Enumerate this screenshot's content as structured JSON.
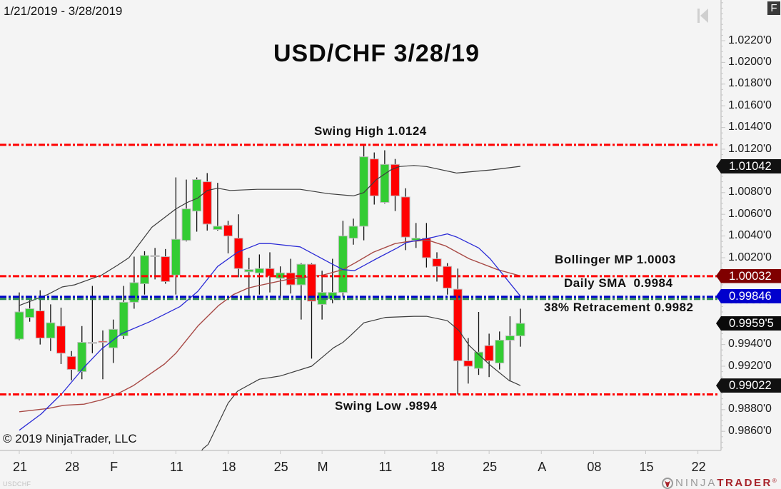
{
  "window": {
    "f_button": "F",
    "scroll_to_end_icon": "scroll-to-end-icon"
  },
  "footer": {
    "copyright": "© 2019 NinjaTrader, LLC",
    "instrument_label": "USDCHF",
    "logo_icon": "ninjatrader-logo-icon",
    "logo_ninja": "NINJA",
    "logo_trader": "TRADER",
    "logo_reg": "®"
  },
  "chart_data": {
    "type": "candlestick",
    "title": "USD/CHF 3/28/19",
    "date_range": "1/21/2019 - 3/28/2019",
    "instrument": "USDCHF",
    "xlabel": "",
    "ylabel": "",
    "grid": false,
    "ylim": [
      0.98404,
      1.02575
    ],
    "colors": {
      "up": "#33cc33",
      "down": "#ff0000",
      "outline": "#bdbdbd",
      "wick": "#111111",
      "axis": "#c8c8c8"
    },
    "y_ticks": [
      "1.0220'0",
      "1.0200'0",
      "1.0180'0",
      "1.0160'0",
      "1.0140'0",
      "1.0120'0",
      "1.0100'0",
      "1.0080'0",
      "1.0060'0",
      "1.0040'0",
      "1.0020'0",
      "1.0000'0",
      "0.9980'0",
      "0.9960'0",
      "0.9940'0",
      "0.9920'0",
      "0.9900'0",
      "0.9880'0",
      "0.9860'0"
    ],
    "x_ticks": [
      {
        "label": "21",
        "bar": 0
      },
      {
        "label": "28",
        "bar": 5
      },
      {
        "label": "F",
        "bar": 9
      },
      {
        "label": "11",
        "bar": 15
      },
      {
        "label": "18",
        "bar": 20
      },
      {
        "label": "25",
        "bar": 25
      },
      {
        "label": "M",
        "bar": 29
      },
      {
        "label": "11",
        "bar": 35
      },
      {
        "label": "18",
        "bar": 40
      },
      {
        "label": "25",
        "bar": 45
      },
      {
        "label": "A",
        "bar": 50
      },
      {
        "label": "08",
        "bar": 55
      },
      {
        "label": "15",
        "bar": 60
      },
      {
        "label": "22",
        "bar": 65
      }
    ],
    "candles": [
      {
        "d": "2019-01-21",
        "o": 0.9945,
        "h": 0.9988,
        "l": 0.9944,
        "c": 0.997
      },
      {
        "d": "2019-01-22",
        "o": 0.9965,
        "h": 0.9981,
        "l": 0.9961,
        "c": 0.9973
      },
      {
        "d": "2019-01-23",
        "o": 0.9971,
        "h": 0.999,
        "l": 0.994,
        "c": 0.9946
      },
      {
        "d": "2019-01-24",
        "o": 0.9946,
        "h": 0.9977,
        "l": 0.9934,
        "c": 0.996
      },
      {
        "d": "2019-01-25",
        "o": 0.9957,
        "h": 0.9974,
        "l": 0.9922,
        "c": 0.9932
      },
      {
        "d": "2019-01-28",
        "o": 0.9929,
        "h": 0.9934,
        "l": 0.9907,
        "c": 0.9917
      },
      {
        "d": "2019-01-29",
        "o": 0.9915,
        "h": 0.9957,
        "l": 0.9908,
        "c": 0.9942
      },
      {
        "d": "2019-01-30",
        "o": 0.9942,
        "h": 0.9994,
        "l": 0.9932,
        "c": 0.9942
      },
      {
        "d": "2019-01-31",
        "o": 0.9943,
        "h": 0.9953,
        "l": 0.9908,
        "c": 0.9942
      },
      {
        "d": "2019-02-01",
        "o": 0.9937,
        "h": 0.9963,
        "l": 0.9923,
        "c": 0.9954
      },
      {
        "d": "2019-02-04",
        "o": 0.9948,
        "h": 0.9994,
        "l": 0.9945,
        "c": 0.9979
      },
      {
        "d": "2019-02-05",
        "o": 0.9979,
        "h": 1.0021,
        "l": 0.9973,
        "c": 0.9997
      },
      {
        "d": "2019-02-06",
        "o": 0.9996,
        "h": 1.0026,
        "l": 0.9986,
        "c": 1.0022
      },
      {
        "d": "2019-02-07",
        "o": 1.0022,
        "h": 1.0029,
        "l": 1.0,
        "c": 1.0022
      },
      {
        "d": "2019-02-08",
        "o": 1.0021,
        "h": 1.0028,
        "l": 0.9996,
        "c": 0.9998
      },
      {
        "d": "2019-02-11",
        "o": 1.0004,
        "h": 1.0094,
        "l": 0.9986,
        "c": 1.0037
      },
      {
        "d": "2019-02-12",
        "o": 1.0036,
        "h": 1.0092,
        "l": 1.0035,
        "c": 1.0065
      },
      {
        "d": "2019-02-13",
        "o": 1.0063,
        "h": 1.0094,
        "l": 1.0044,
        "c": 1.0092
      },
      {
        "d": "2019-02-14",
        "o": 1.009,
        "h": 1.0098,
        "l": 1.0045,
        "c": 1.0051
      },
      {
        "d": "2019-02-15",
        "o": 1.0046,
        "h": 1.0089,
        "l": 1.0045,
        "c": 1.0049
      },
      {
        "d": "2019-02-18",
        "o": 1.005,
        "h": 1.0054,
        "l": 1.0024,
        "c": 1.004
      },
      {
        "d": "2019-02-19",
        "o": 1.0038,
        "h": 1.006,
        "l": 1.0002,
        "c": 1.001
      },
      {
        "d": "2019-02-20",
        "o": 1.0007,
        "h": 1.002,
        "l": 0.9982,
        "c": 1.0009
      },
      {
        "d": "2019-02-21",
        "o": 1.0006,
        "h": 1.0023,
        "l": 0.9986,
        "c": 1.001
      },
      {
        "d": "2019-02-22",
        "o": 1.001,
        "h": 1.0025,
        "l": 0.9988,
        "c": 1.0003
      },
      {
        "d": "2019-02-25",
        "o": 1.0001,
        "h": 1.0012,
        "l": 0.9983,
        "c": 1.0006
      },
      {
        "d": "2019-02-26",
        "o": 1.0006,
        "h": 1.0019,
        "l": 0.9987,
        "c": 0.9995
      },
      {
        "d": "2019-02-27",
        "o": 0.9995,
        "h": 1.0015,
        "l": 0.9963,
        "c": 1.0014
      },
      {
        "d": "2019-02-28",
        "o": 1.0014,
        "h": 1.0015,
        "l": 0.9927,
        "c": 0.998
      },
      {
        "d": "2019-03-01",
        "o": 0.9977,
        "h": 1.0008,
        "l": 0.9963,
        "c": 0.9988
      },
      {
        "d": "2019-03-04",
        "o": 0.9982,
        "h": 1.0019,
        "l": 0.9978,
        "c": 0.9988
      },
      {
        "d": "2019-03-05",
        "o": 0.9988,
        "h": 1.0054,
        "l": 0.9984,
        "c": 1.004
      },
      {
        "d": "2019-03-06",
        "o": 1.0038,
        "h": 1.0056,
        "l": 1.0032,
        "c": 1.0049
      },
      {
        "d": "2019-03-07",
        "o": 1.0049,
        "h": 1.0124,
        "l": 1.0036,
        "c": 1.0113
      },
      {
        "d": "2019-03-08",
        "o": 1.0111,
        "h": 1.0117,
        "l": 1.0069,
        "c": 1.0077
      },
      {
        "d": "2019-03-11",
        "o": 1.0071,
        "h": 1.0119,
        "l": 1.007,
        "c": 1.0106
      },
      {
        "d": "2019-03-12",
        "o": 1.0106,
        "h": 1.0111,
        "l": 1.0063,
        "c": 1.0077
      },
      {
        "d": "2019-03-13",
        "o": 1.0076,
        "h": 1.0084,
        "l": 1.0027,
        "c": 1.0039
      },
      {
        "d": "2019-03-14",
        "o": 1.0036,
        "h": 1.0052,
        "l": 1.0029,
        "c": 1.0038
      },
      {
        "d": "2019-03-15",
        "o": 1.0038,
        "h": 1.0052,
        "l": 1.0011,
        "c": 1.002
      },
      {
        "d": "2019-03-18",
        "o": 1.0019,
        "h": 1.0025,
        "l": 0.9998,
        "c": 1.0012
      },
      {
        "d": "2019-03-19",
        "o": 1.0012,
        "h": 1.0015,
        "l": 0.9986,
        "c": 0.9992
      },
      {
        "d": "2019-03-20",
        "o": 0.9991,
        "h": 1.001,
        "l": 0.9894,
        "c": 0.9925
      },
      {
        "d": "2019-03-21",
        "o": 0.9925,
        "h": 0.9946,
        "l": 0.9904,
        "c": 0.992
      },
      {
        "d": "2019-03-22",
        "o": 0.9918,
        "h": 0.997,
        "l": 0.9912,
        "c": 0.9933
      },
      {
        "d": "2019-03-25",
        "o": 0.9939,
        "h": 0.995,
        "l": 0.991,
        "c": 0.9925
      },
      {
        "d": "2019-03-26",
        "o": 0.9923,
        "h": 0.9952,
        "l": 0.9917,
        "c": 0.9944
      },
      {
        "d": "2019-03-27",
        "o": 0.9944,
        "h": 0.9966,
        "l": 0.9906,
        "c": 0.9948
      },
      {
        "d": "2019-03-28",
        "o": 0.9948,
        "h": 0.9973,
        "l": 0.9938,
        "c": 0.99595
      }
    ],
    "indicators": [
      {
        "name": "Bollinger upper band",
        "color": "#3c3c3c",
        "width": 1.2,
        "points": [
          [
            0,
            0.9976
          ],
          [
            2.7,
            0.9986
          ],
          [
            4.1,
            0.9993
          ],
          [
            5.3,
            0.9995
          ],
          [
            7.9,
            1.0004
          ],
          [
            9.4,
            1.0013
          ],
          [
            10.5,
            1.002
          ],
          [
            12.7,
            1.0048
          ],
          [
            15.0,
            1.0065
          ],
          [
            16.1,
            1.0071
          ],
          [
            17.1,
            1.0075
          ],
          [
            18.0,
            1.0082
          ],
          [
            19.0,
            1.0084
          ],
          [
            20.2,
            1.0082
          ],
          [
            22.8,
            1.0083
          ],
          [
            26.9,
            1.0083
          ],
          [
            29.6,
            1.0079
          ],
          [
            32.0,
            1.0077
          ],
          [
            33.0,
            1.008
          ],
          [
            34.2,
            1.0092
          ],
          [
            35.6,
            1.0101
          ],
          [
            36.4,
            1.0104
          ],
          [
            37.8,
            1.0105
          ],
          [
            39.0,
            1.0104
          ],
          [
            41.9,
            1.0098
          ],
          [
            45.3,
            1.0101
          ],
          [
            48.0,
            1.01042
          ]
        ]
      },
      {
        "name": "Bollinger lower band",
        "color": "#3c3c3c",
        "width": 1.2,
        "points": [
          [
            16.6,
            0.983
          ],
          [
            17.6,
            0.9844
          ],
          [
            18.1,
            0.9848
          ],
          [
            20.0,
            0.9886
          ],
          [
            20.9,
            0.9897
          ],
          [
            23.0,
            0.9908
          ],
          [
            25.0,
            0.9911
          ],
          [
            28.0,
            0.992
          ],
          [
            30.1,
            0.9937
          ],
          [
            31.0,
            0.9942
          ],
          [
            31.7,
            0.9948
          ],
          [
            33.0,
            0.996
          ],
          [
            35.1,
            0.9965
          ],
          [
            37.8,
            0.9966
          ],
          [
            39.0,
            0.9966
          ],
          [
            41.0,
            0.9962
          ],
          [
            42.1,
            0.9953
          ],
          [
            43.1,
            0.9939
          ],
          [
            45.1,
            0.9921
          ],
          [
            46.9,
            0.9907
          ],
          [
            48.0,
            0.99022
          ]
        ]
      },
      {
        "name": "Bollinger middle",
        "color": "#a84a46",
        "width": 1.4,
        "points": [
          [
            0,
            0.9878
          ],
          [
            2.7,
            0.9881
          ],
          [
            4.3,
            0.9884
          ],
          [
            6.2,
            0.9885
          ],
          [
            7.9,
            0.9889
          ],
          [
            9.3,
            0.9894
          ],
          [
            10.9,
            0.9902
          ],
          [
            13.9,
            0.9922
          ],
          [
            15.0,
            0.9932
          ],
          [
            17.1,
            0.9957
          ],
          [
            19.1,
            0.9976
          ],
          [
            20.5,
            0.9986
          ],
          [
            21.9,
            0.9992
          ],
          [
            22.8,
            0.9994
          ],
          [
            25.7,
            1.0
          ],
          [
            29.1,
            1.0004
          ],
          [
            31.0,
            1.0009
          ],
          [
            32.3,
            1.0016
          ],
          [
            33.9,
            1.0025
          ],
          [
            36.0,
            1.0033
          ],
          [
            37.3,
            1.0035
          ],
          [
            39.2,
            1.0036
          ],
          [
            40.8,
            1.0031
          ],
          [
            43.1,
            1.0019
          ],
          [
            45.8,
            1.0009
          ],
          [
            48.0,
            1.00032
          ]
        ]
      },
      {
        "name": "Daily SMA",
        "color": "#2b2bd6",
        "width": 1.3,
        "points": [
          [
            0,
            0.9861
          ],
          [
            2.1,
            0.9876
          ],
          [
            4.1,
            0.9895
          ],
          [
            6.2,
            0.9919
          ],
          [
            7.9,
            0.9936
          ],
          [
            9.8,
            0.995
          ],
          [
            12.5,
            0.9961
          ],
          [
            15.4,
            0.9975
          ],
          [
            17.1,
            0.9989
          ],
          [
            19.0,
            1.0012
          ],
          [
            20.9,
            1.0025
          ],
          [
            23.0,
            1.0033
          ],
          [
            24.0,
            1.0033
          ],
          [
            26.9,
            1.003
          ],
          [
            29.8,
            1.0015
          ],
          [
            31.0,
            1.0009
          ],
          [
            32.1,
            1.0008
          ],
          [
            34.2,
            1.0019
          ],
          [
            36.2,
            1.0029
          ],
          [
            37.1,
            1.0034
          ],
          [
            39.7,
            1.0039
          ],
          [
            41.0,
            1.0042
          ],
          [
            41.9,
            1.0039
          ],
          [
            44.0,
            1.0029
          ],
          [
            45.1,
            1.0019
          ],
          [
            48.0,
            0.99846
          ]
        ]
      }
    ],
    "horizontal_lines": [
      {
        "label": "Swing High 1.0124",
        "price": 1.0124,
        "color": "#ff0000"
      },
      {
        "label": "Bollinger MP 1.0003",
        "price": 1.0003,
        "color": "#ff0000"
      },
      {
        "label": "Daily SMA  0.9984",
        "price": 0.9984,
        "color": "#0000cc"
      },
      {
        "label": "38% Retracement 0.9982",
        "price": 0.9982,
        "color": "#2e8b57"
      },
      {
        "label": "Swing Low .9894",
        "price": 0.9894,
        "color": "#ff0000"
      }
    ],
    "price_markers": [
      {
        "label": "1.01042",
        "price": 1.01042,
        "color": "#111111"
      },
      {
        "label": "1.00032",
        "price": 1.00032,
        "color": "#800000"
      },
      {
        "label": "0.99846",
        "price": 0.99846,
        "color": "#0000cd"
      },
      {
        "label": "0.9959'5",
        "price": 0.99595,
        "color": "#0a0a0a"
      },
      {
        "label": "0.99022",
        "price": 0.99022,
        "color": "#111111"
      }
    ]
  }
}
